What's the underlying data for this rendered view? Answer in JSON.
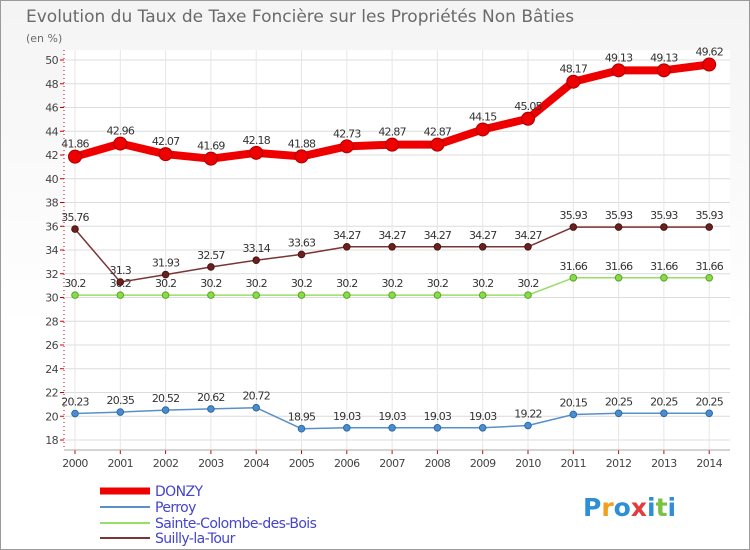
{
  "chart_data": {
    "type": "line",
    "title": "Evolution du Taux de Taxe Foncière sur les Propriétés Non Bâties",
    "ylabel": "(en %)",
    "xlabel": "",
    "ylim": [
      18,
      50
    ],
    "y_ticks": [
      "18",
      "20",
      "22",
      "24",
      "26",
      "28",
      "30",
      "32",
      "34",
      "36",
      "38",
      "40",
      "42",
      "44",
      "46",
      "48",
      "50"
    ],
    "x": [
      "2000",
      "2001",
      "2002",
      "2003",
      "2004",
      "2005",
      "2006",
      "2007",
      "2008",
      "2009",
      "2010",
      "2011",
      "2012",
      "2013",
      "2014"
    ],
    "series": [
      {
        "name": "DONZY",
        "color": "#ee0000",
        "values": [
          41.86,
          42.96,
          42.07,
          41.69,
          42.18,
          41.88,
          42.73,
          42.87,
          42.87,
          44.15,
          45.05,
          48.17,
          49.13,
          49.13,
          49.62
        ],
        "labels": [
          "41.86",
          "42.96",
          "42.07",
          "41.69",
          "42.18",
          "41.88",
          "42.73",
          "42.87",
          "42.87",
          "44.15",
          "45.05",
          "48.17",
          "49.13",
          "49.13",
          "49.62"
        ]
      },
      {
        "name": "Perroy",
        "color": "#5b8fc7",
        "values": [
          20.23,
          20.35,
          20.52,
          20.62,
          20.72,
          18.95,
          19.03,
          19.03,
          19.03,
          19.03,
          19.22,
          20.15,
          20.25,
          20.25,
          20.25
        ],
        "labels": [
          "20.23",
          "20.35",
          "20.52",
          "20.62",
          "20.72",
          "18.95",
          "19.03",
          "19.03",
          "19.03",
          "19.03",
          "19.22",
          "20.15",
          "20.25",
          "20.25",
          "20.25"
        ]
      },
      {
        "name": "Sainte-Colombe-des-Bois",
        "color": "#99dd66",
        "values": [
          30.2,
          30.2,
          30.2,
          30.2,
          30.2,
          30.2,
          30.2,
          30.2,
          30.2,
          30.2,
          30.2,
          31.66,
          31.66,
          31.66,
          31.66
        ],
        "labels": [
          "30.2",
          "30.2",
          "30.2",
          "30.2",
          "30.2",
          "30.2",
          "30.2",
          "30.2",
          "30.2",
          "30.2",
          "30.2",
          "31.66",
          "31.66",
          "31.66",
          "31.66"
        ]
      },
      {
        "name": "Suilly-la-Tour",
        "color": "#7a3535",
        "values": [
          35.76,
          31.3,
          31.93,
          32.57,
          33.14,
          33.63,
          34.27,
          34.27,
          34.27,
          34.27,
          34.27,
          35.93,
          35.93,
          35.93,
          35.93
        ],
        "labels": [
          "35.76",
          "31.3",
          "31.93",
          "32.57",
          "33.14",
          "33.63",
          "34.27",
          "34.27",
          "34.27",
          "34.27",
          "34.27",
          "35.93",
          "35.93",
          "35.93",
          "35.93"
        ]
      }
    ]
  },
  "logo": {
    "text": "Proxiti",
    "letters": [
      "P",
      "r",
      "o",
      "x",
      "i",
      "t",
      "i"
    ],
    "colors": [
      "#2e8fd6",
      "#f0a020",
      "#2e8fd6",
      "#e23c3c",
      "#2e8fd6",
      "#7cc242",
      "#2e8fd6"
    ]
  }
}
